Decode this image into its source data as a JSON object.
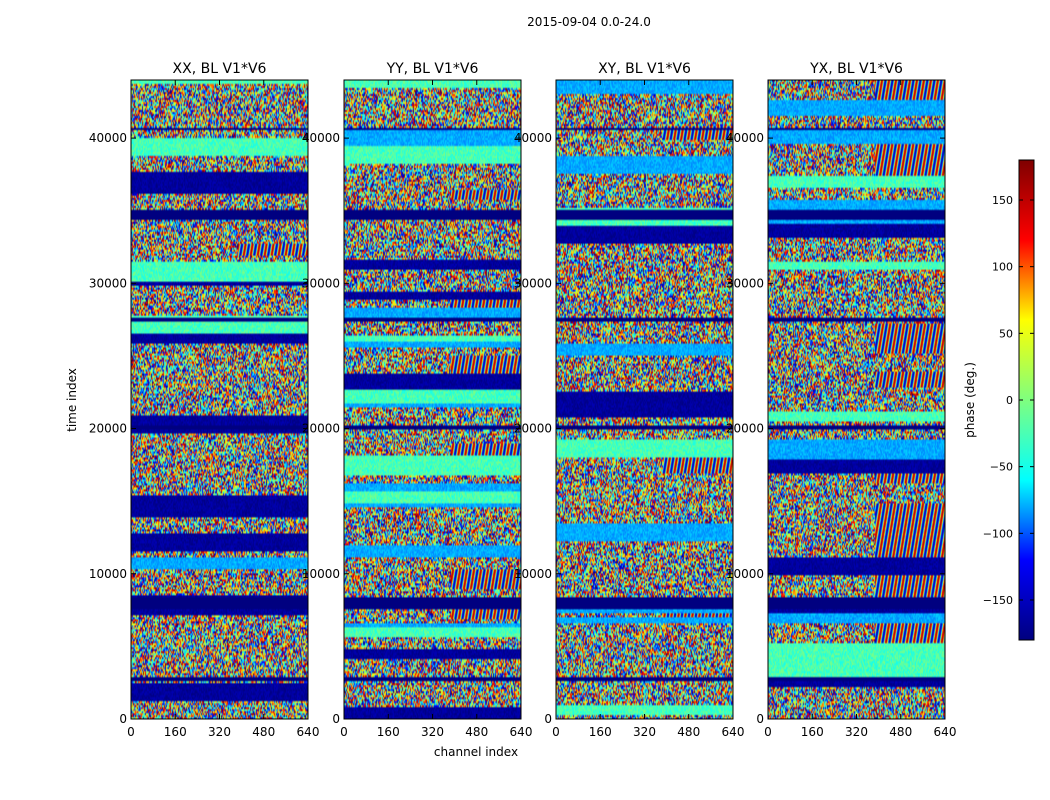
{
  "figure": {
    "suptitle": "2015-09-04 0.0-24.0",
    "xlabel": "channel index",
    "ylabel": "time index"
  },
  "colorbar": {
    "label": "phase (deg.)",
    "ticks": [
      150,
      100,
      50,
      0,
      -50,
      -100,
      -150
    ],
    "tick_labels": [
      "150",
      "100",
      "50",
      "0",
      "−50",
      "−100",
      "−150"
    ],
    "range": [
      -180,
      180
    ],
    "colormap": "jet",
    "colors": [
      "#00007f",
      "#0000ff",
      "#00ffff",
      "#7fff7f",
      "#ffff00",
      "#ff0000",
      "#7f0000"
    ]
  },
  "chart_data": [
    {
      "type": "heatmap",
      "title": "XX, BL V1*V6",
      "xlabel": "channel index",
      "ylabel": "time index",
      "xlim": [
        0,
        640
      ],
      "ylim": [
        0,
        44000
      ],
      "xticks": [
        0,
        160,
        320,
        480,
        640
      ],
      "yticks": [
        0,
        10000,
        20000,
        30000,
        40000
      ],
      "zlim": [
        -180,
        180
      ],
      "flagged_bands": [
        [
          7500,
          8300
        ],
        [
          34400,
          35100
        ],
        [
          2600,
          2800
        ],
        [
          13000,
          13100
        ],
        [
          20000,
          20200
        ],
        [
          27400,
          27600
        ],
        [
          40600,
          40800
        ]
      ]
    },
    {
      "type": "heatmap",
      "title": "YY, BL V1*V6",
      "xlabel": "channel index",
      "ylabel": "time index",
      "xlim": [
        0,
        640
      ],
      "ylim": [
        0,
        44000
      ],
      "xticks": [
        0,
        160,
        320,
        480,
        640
      ],
      "yticks": [
        0,
        10000,
        20000,
        30000,
        40000
      ],
      "zlim": [
        -180,
        180
      ],
      "flagged_bands": [
        [
          7500,
          8300
        ],
        [
          34400,
          35100
        ],
        [
          2600,
          2800
        ],
        [
          13000,
          13100
        ],
        [
          20000,
          20200
        ],
        [
          27400,
          27600
        ],
        [
          40600,
          40800
        ]
      ]
    },
    {
      "type": "heatmap",
      "title": "XY, BL V1*V6",
      "xlabel": "channel index",
      "ylabel": "time index",
      "xlim": [
        0,
        640
      ],
      "ylim": [
        0,
        44000
      ],
      "xticks": [
        0,
        160,
        320,
        480,
        640
      ],
      "yticks": [
        0,
        10000,
        20000,
        30000,
        40000
      ],
      "zlim": [
        -180,
        180
      ],
      "flagged_bands": [
        [
          7500,
          8300
        ],
        [
          34400,
          35100
        ],
        [
          2600,
          2800
        ],
        [
          13000,
          13100
        ],
        [
          20000,
          20200
        ],
        [
          27400,
          27600
        ],
        [
          40600,
          40800
        ]
      ]
    },
    {
      "type": "heatmap",
      "title": "YX, BL V1*V6",
      "xlabel": "channel index",
      "ylabel": "time index",
      "xlim": [
        0,
        640
      ],
      "ylim": [
        0,
        44000
      ],
      "xticks": [
        0,
        160,
        320,
        480,
        640
      ],
      "yticks": [
        0,
        10000,
        20000,
        30000,
        40000
      ],
      "zlim": [
        -180,
        180
      ],
      "flagged_bands": [
        [
          7500,
          8300
        ],
        [
          34400,
          35100
        ],
        [
          2600,
          2800
        ],
        [
          13000,
          13100
        ],
        [
          20000,
          20200
        ],
        [
          27400,
          27600
        ],
        [
          40600,
          40800
        ]
      ]
    }
  ]
}
